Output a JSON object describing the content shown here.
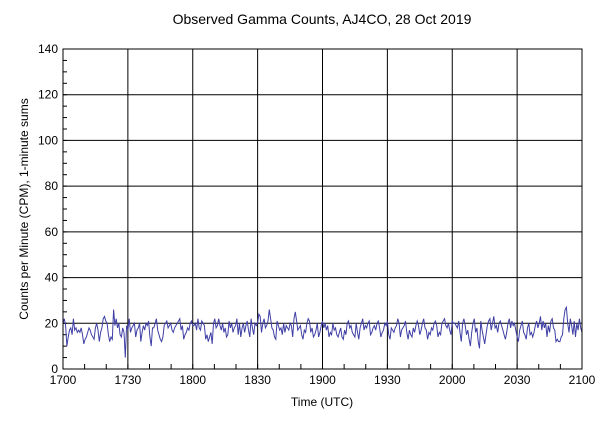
{
  "chart_data": {
    "type": "line",
    "title": "Observed Gamma Counts, AJ4CO, 28 Oct 2019",
    "xlabel": "Time (UTC)",
    "ylabel": "Counts per Minute (CPM), 1-minute sums",
    "xlim_minutes": [
      0,
      240
    ],
    "ylim": [
      0,
      140
    ],
    "grid": true,
    "x_ticks": [
      {
        "minute": 0,
        "label": "1700"
      },
      {
        "minute": 30,
        "label": "1730"
      },
      {
        "minute": 60,
        "label": "1800"
      },
      {
        "minute": 90,
        "label": "1830"
      },
      {
        "minute": 120,
        "label": "1900"
      },
      {
        "minute": 150,
        "label": "1930"
      },
      {
        "minute": 180,
        "label": "2000"
      },
      {
        "minute": 210,
        "label": "2030"
      },
      {
        "minute": 240,
        "label": "2100"
      }
    ],
    "y_ticks": [
      {
        "value": 0,
        "label": "0"
      },
      {
        "value": 20,
        "label": "20"
      },
      {
        "value": 40,
        "label": "40"
      },
      {
        "value": 60,
        "label": "60"
      },
      {
        "value": 80,
        "label": "80"
      },
      {
        "value": 100,
        "label": "100"
      },
      {
        "value": 120,
        "label": "120"
      },
      {
        "value": 140,
        "label": "140"
      }
    ],
    "series": [
      {
        "name": "CPM",
        "color": "#3f3fa6",
        "values": [
          20,
          22,
          19,
          10,
          14,
          17,
          18,
          15,
          22,
          17,
          18,
          16,
          17,
          16,
          18,
          15,
          11,
          13,
          14,
          16,
          18,
          17,
          15,
          14,
          13,
          18,
          20,
          17,
          12,
          16,
          18,
          22,
          23,
          21,
          20,
          15,
          12,
          14,
          13,
          26,
          19,
          22,
          18,
          20,
          15,
          14,
          18,
          16,
          5,
          19,
          17,
          22,
          16,
          18,
          19,
          20,
          14,
          17,
          18,
          20,
          12,
          16,
          19,
          17,
          20,
          19,
          21,
          14,
          10,
          18,
          18,
          20,
          22,
          17,
          15,
          13,
          12,
          14,
          19,
          20,
          21,
          18,
          19,
          20,
          17,
          16,
          18,
          19,
          20,
          21,
          22,
          17,
          19,
          13,
          15,
          16,
          18,
          17,
          20,
          21,
          19,
          19,
          20,
          17,
          22,
          18,
          17,
          21,
          20,
          19,
          13,
          15,
          12,
          14,
          16,
          11,
          20,
          22,
          18,
          19,
          22,
          19,
          17,
          20,
          16,
          18,
          14,
          15,
          21,
          18,
          20,
          16,
          18,
          19,
          22,
          15,
          20,
          14,
          18,
          20,
          16,
          19,
          21,
          17,
          14,
          22,
          18,
          15,
          20,
          19,
          20,
          24,
          23,
          16,
          20,
          22,
          18,
          19,
          21,
          26,
          22,
          18,
          17,
          14,
          13,
          21,
          19,
          17,
          18,
          15,
          20,
          16,
          19,
          18,
          17,
          20,
          19,
          14,
          22,
          25,
          21,
          17,
          18,
          19,
          15,
          13,
          17,
          16,
          20,
          22,
          21,
          16,
          18,
          14,
          15,
          17,
          20,
          14,
          16,
          19,
          21,
          18,
          20,
          17,
          19,
          14,
          16,
          15,
          20,
          17,
          18,
          15,
          14,
          16,
          18,
          14,
          13,
          17,
          15,
          20,
          21,
          18,
          19,
          16,
          15,
          14,
          20,
          16,
          13,
          18,
          20,
          22,
          17,
          19,
          18,
          20,
          21,
          15,
          16,
          18,
          19,
          17,
          20,
          21,
          18,
          14,
          16,
          17,
          20,
          19,
          21,
          15,
          13,
          18,
          17,
          16,
          18,
          19,
          22,
          20,
          14,
          17,
          18,
          19,
          21,
          16,
          13,
          17,
          15,
          14,
          18,
          16,
          19,
          21,
          19,
          15,
          17,
          20,
          22,
          18,
          17,
          13,
          16,
          15,
          18,
          17,
          20,
          21,
          19,
          14,
          16,
          15,
          20,
          21,
          22,
          19,
          18,
          20,
          17,
          15,
          21,
          20,
          20,
          19,
          18,
          21,
          16,
          12,
          20,
          22,
          19,
          15,
          17,
          13,
          10,
          16,
          20,
          22,
          16,
          18,
          12,
          9,
          21,
          17,
          14,
          11,
          15,
          19,
          21,
          22,
          17,
          20,
          23,
          18,
          19,
          16,
          20,
          21,
          19,
          17,
          15,
          13,
          16,
          20,
          22,
          18,
          21,
          19,
          20,
          17,
          14,
          12,
          17,
          19,
          21,
          16,
          15,
          13,
          18,
          20,
          15,
          16,
          14,
          16,
          19,
          21,
          18,
          20,
          23,
          17,
          21,
          18,
          20,
          14,
          19,
          16,
          21,
          22,
          18,
          17,
          12,
          13,
          12,
          12,
          14,
          15,
          22,
          26,
          27,
          20,
          16,
          22,
          19,
          15,
          21,
          14,
          20,
          17,
          22,
          18,
          16
        ]
      }
    ]
  }
}
